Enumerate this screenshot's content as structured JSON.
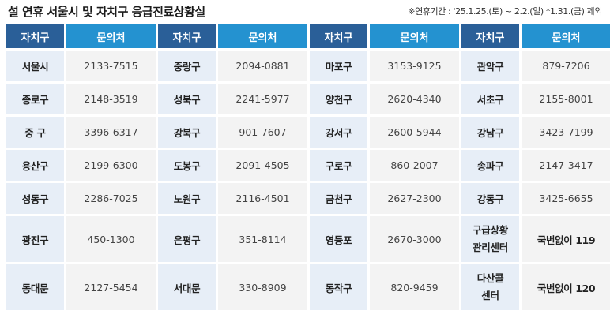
{
  "title": "설 연휴 서울시 및 자치구 응급진료상황실",
  "note": "※연휴기간 : '25.1.25.(토) ~ 2.2.(일) *1.31.(금) 제외",
  "headers": [
    "자치구",
    "문의처",
    "자치구",
    "문의처",
    "자치구",
    "문의처",
    "자치구",
    "문의처"
  ],
  "rows": [
    [
      {
        "d": "서울시",
        "p": "2133-7515"
      },
      {
        "d": "중랑구",
        "p": "2094-0881"
      },
      {
        "d": "마포구",
        "p": "3153-9125"
      },
      {
        "d": "관악구",
        "p": "879-7206"
      }
    ],
    [
      {
        "d": "종로구",
        "p": "2148-3519"
      },
      {
        "d": "성북구",
        "p": "2241-5977"
      },
      {
        "d": "양천구",
        "p": "2620-4340"
      },
      {
        "d": "서초구",
        "p": "2155-8001"
      }
    ],
    [
      {
        "d": "중 구",
        "p": "3396-6317"
      },
      {
        "d": "강북구",
        "p": "901-7607"
      },
      {
        "d": "강서구",
        "p": "2600-5944"
      },
      {
        "d": "강남구",
        "p": "3423-7199"
      }
    ],
    [
      {
        "d": "용산구",
        "p": "2199-6300"
      },
      {
        "d": "도봉구",
        "p": "2091-4505"
      },
      {
        "d": "구로구",
        "p": "860-2007"
      },
      {
        "d": "송파구",
        "p": "2147-3417"
      }
    ],
    [
      {
        "d": "성동구",
        "p": "2286-7025"
      },
      {
        "d": "노원구",
        "p": "2116-4501"
      },
      {
        "d": "금천구",
        "p": "2627-2300"
      },
      {
        "d": "강동구",
        "p": "3425-6655"
      }
    ],
    [
      {
        "d": "광진구",
        "p": "450-1300"
      },
      {
        "d": "은평구",
        "p": "351-8114"
      },
      {
        "d": "영등포",
        "p": "2670-3000"
      },
      {
        "d1": "구급상황",
        "d2": "관리센터",
        "p": "국번없이 119"
      }
    ],
    [
      {
        "d": "동대문",
        "p": "2127-5454"
      },
      {
        "d": "서대문",
        "p": "330-8909"
      },
      {
        "d": "동작구",
        "p": "820-9459"
      },
      {
        "d1": "다산콜",
        "d2": "센터",
        "p": "국번없이 120"
      }
    ]
  ]
}
